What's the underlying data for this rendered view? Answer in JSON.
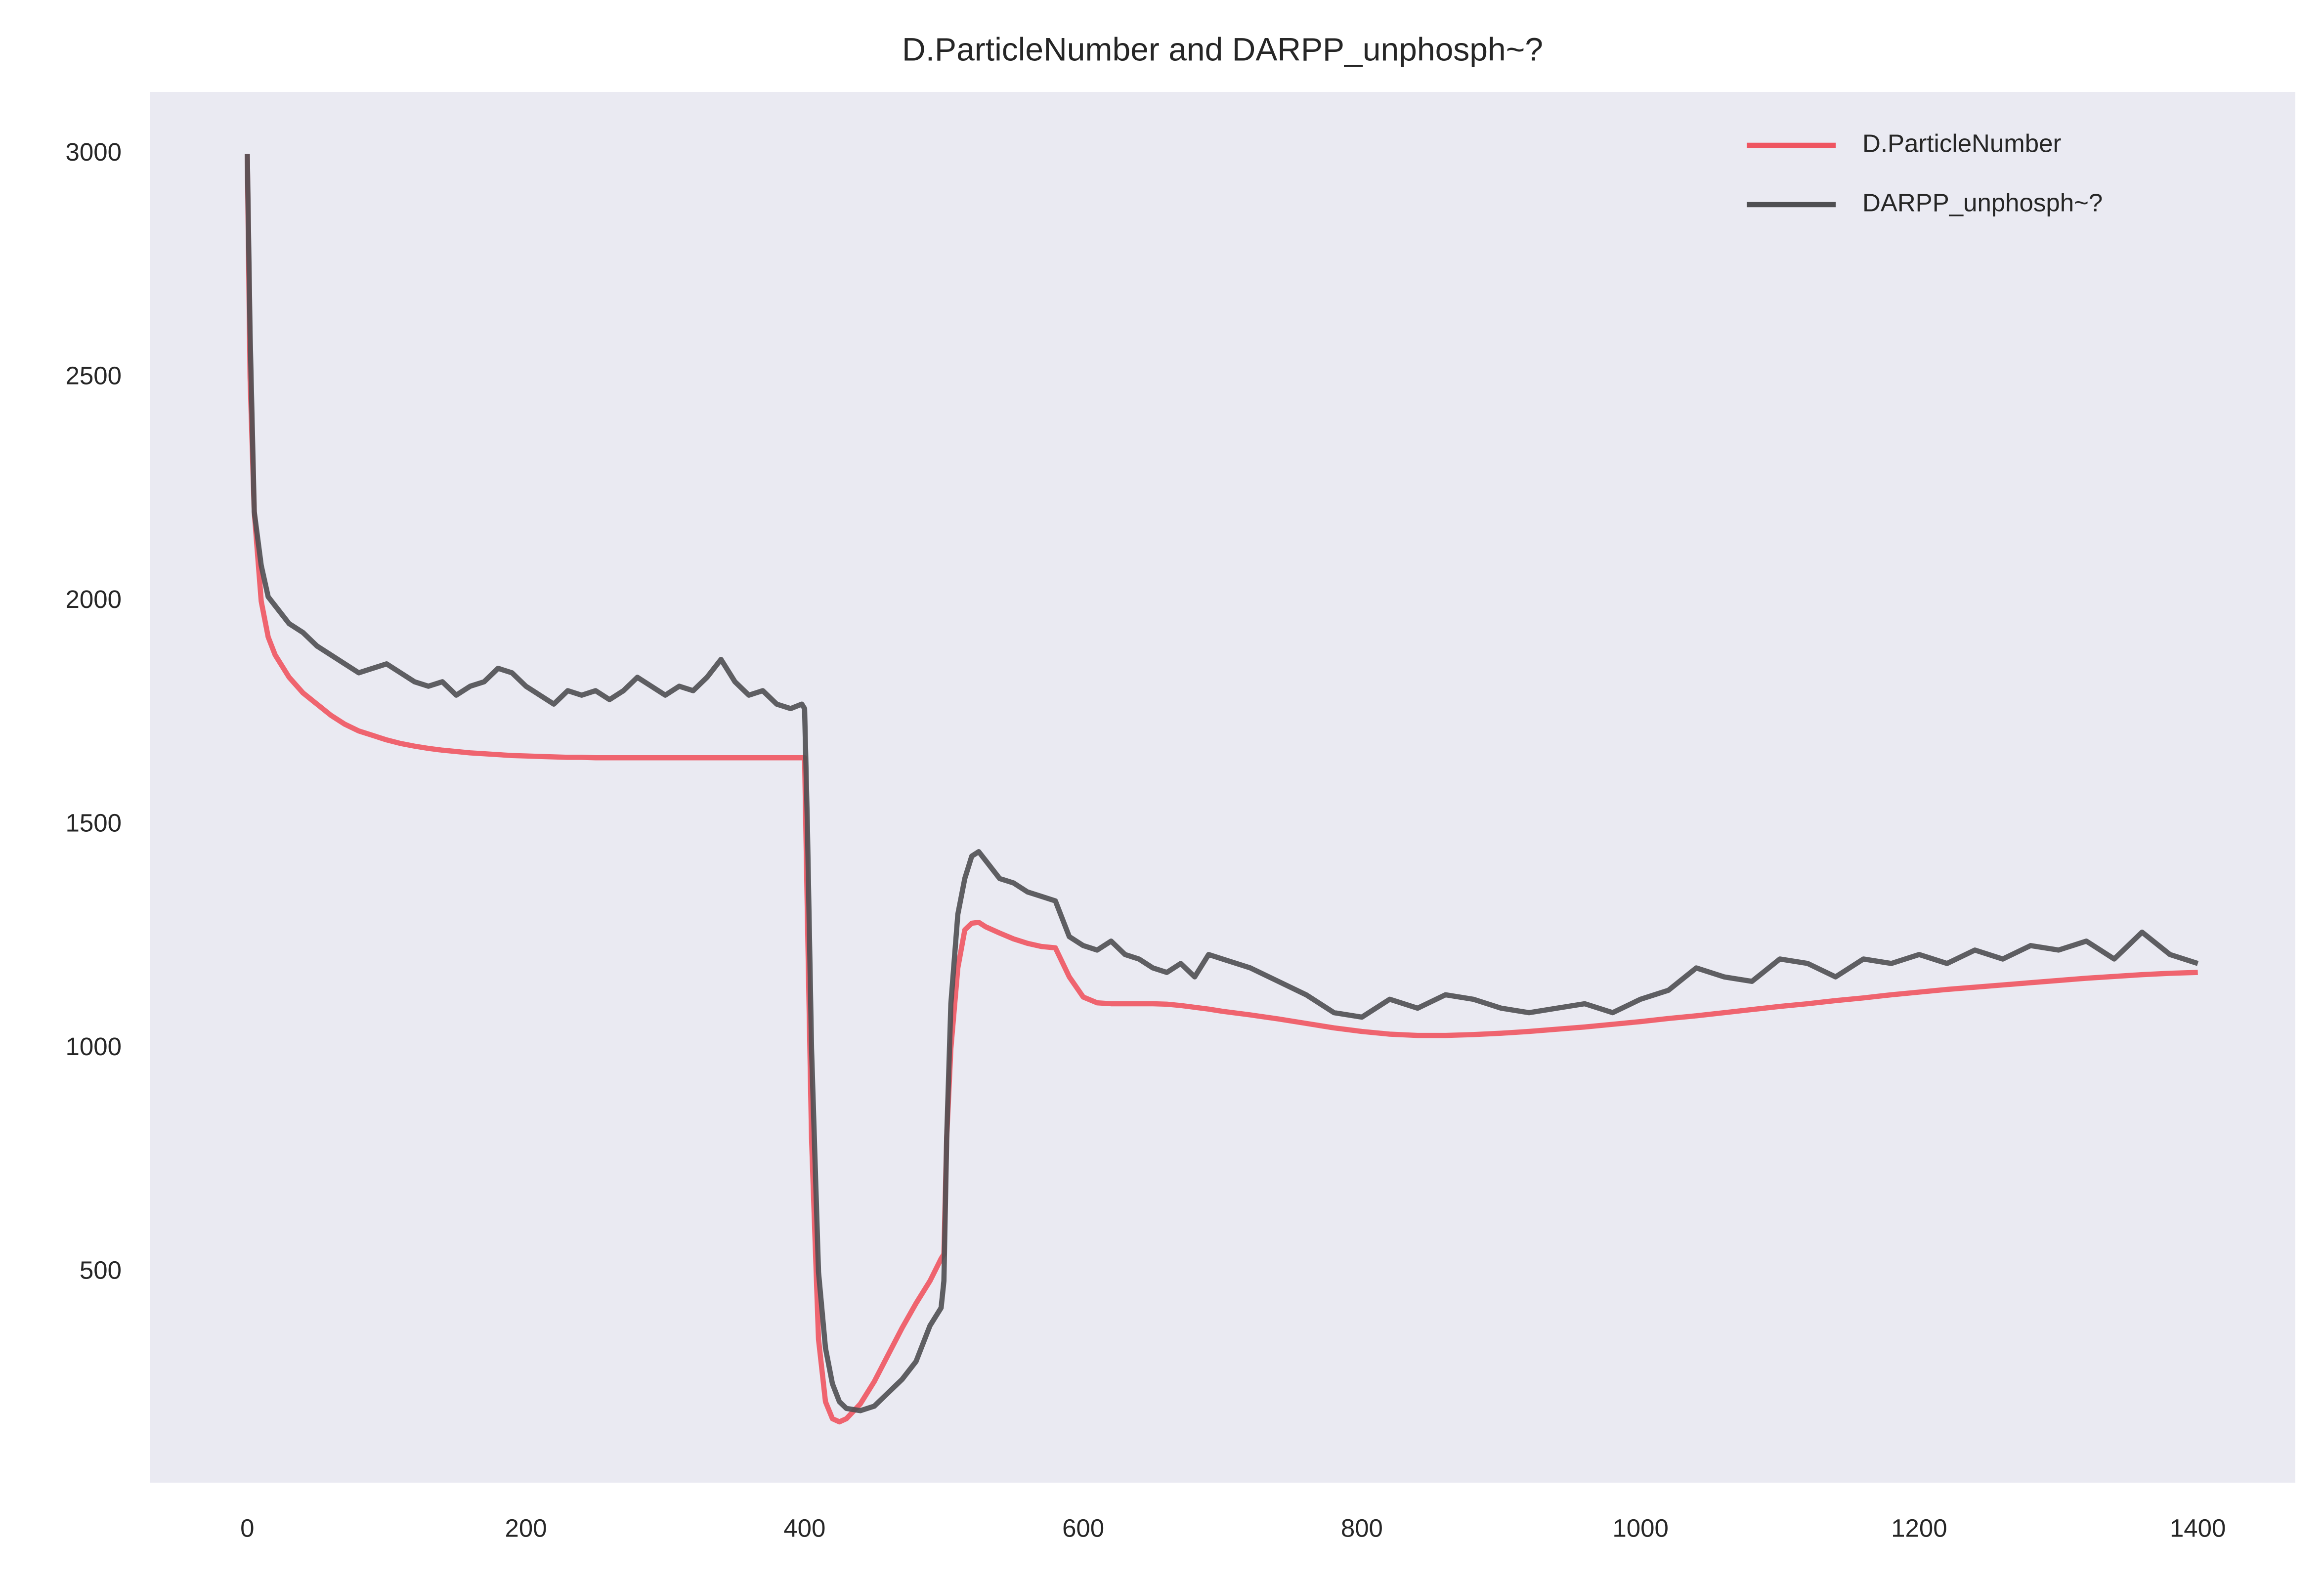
{
  "chart_data": {
    "type": "line",
    "title": "D.ParticleNumber and DARPP_unphosph~?",
    "x": [
      0,
      2,
      5,
      10,
      15,
      20,
      30,
      40,
      50,
      60,
      70,
      80,
      90,
      100,
      110,
      120,
      130,
      140,
      150,
      160,
      170,
      180,
      190,
      200,
      210,
      220,
      230,
      240,
      250,
      260,
      270,
      280,
      290,
      300,
      310,
      320,
      330,
      340,
      350,
      360,
      370,
      380,
      390,
      398,
      400,
      402,
      405,
      410,
      415,
      420,
      425,
      430,
      440,
      450,
      460,
      470,
      480,
      490,
      498,
      500,
      502,
      505,
      510,
      515,
      520,
      525,
      530,
      540,
      550,
      560,
      570,
      580,
      590,
      600,
      610,
      620,
      630,
      640,
      650,
      660,
      670,
      680,
      690,
      700,
      720,
      740,
      760,
      780,
      800,
      820,
      840,
      860,
      880,
      900,
      920,
      940,
      960,
      980,
      1000,
      1020,
      1040,
      1060,
      1080,
      1100,
      1120,
      1140,
      1160,
      1180,
      1200,
      1220,
      1240,
      1260,
      1280,
      1300,
      1320,
      1340,
      1360,
      1380,
      1400
    ],
    "series": [
      {
        "name": "D.ParticleNumber",
        "color": "#ef5561",
        "values": [
          3000,
          2500,
          2200,
          2000,
          1920,
          1880,
          1830,
          1795,
          1770,
          1745,
          1725,
          1710,
          1700,
          1690,
          1682,
          1676,
          1671,
          1667,
          1664,
          1661,
          1659,
          1657,
          1655,
          1654,
          1653,
          1652,
          1651,
          1651,
          1650,
          1650,
          1650,
          1650,
          1650,
          1650,
          1650,
          1650,
          1650,
          1650,
          1650,
          1650,
          1650,
          1650,
          1650,
          1650,
          1650,
          1300,
          800,
          350,
          210,
          172,
          165,
          172,
          205,
          255,
          315,
          375,
          430,
          480,
          530,
          540,
          800,
          1000,
          1180,
          1265,
          1280,
          1282,
          1272,
          1258,
          1245,
          1235,
          1228,
          1225,
          1160,
          1115,
          1102,
          1100,
          1100,
          1100,
          1100,
          1099,
          1096,
          1092,
          1088,
          1083,
          1075,
          1066,
          1056,
          1046,
          1038,
          1032,
          1029,
          1029,
          1031,
          1034,
          1038,
          1043,
          1048,
          1054,
          1060,
          1067,
          1073,
          1080,
          1087,
          1094,
          1100,
          1107,
          1113,
          1120,
          1126,
          1132,
          1137,
          1142,
          1147,
          1152,
          1157,
          1161,
          1165,
          1168,
          1170
        ]
      },
      {
        "name": "DARPP_unphosph~?",
        "color": "#4f4f52",
        "values": [
          3000,
          2600,
          2200,
          2080,
          2010,
          1990,
          1950,
          1930,
          1900,
          1880,
          1860,
          1840,
          1850,
          1860,
          1840,
          1820,
          1810,
          1820,
          1790,
          1810,
          1820,
          1850,
          1840,
          1810,
          1790,
          1770,
          1800,
          1790,
          1800,
          1780,
          1800,
          1830,
          1810,
          1790,
          1810,
          1800,
          1830,
          1870,
          1820,
          1790,
          1800,
          1770,
          1760,
          1770,
          1760,
          1500,
          1000,
          500,
          330,
          250,
          210,
          195,
          190,
          200,
          230,
          260,
          300,
          380,
          420,
          480,
          800,
          1100,
          1300,
          1380,
          1430,
          1440,
          1420,
          1380,
          1370,
          1350,
          1340,
          1330,
          1250,
          1230,
          1220,
          1240,
          1210,
          1200,
          1180,
          1170,
          1190,
          1160,
          1210,
          1200,
          1180,
          1150,
          1120,
          1080,
          1070,
          1110,
          1090,
          1120,
          1110,
          1090,
          1080,
          1090,
          1100,
          1080,
          1110,
          1130,
          1180,
          1160,
          1150,
          1200,
          1190,
          1160,
          1200,
          1190,
          1210,
          1190,
          1220,
          1200,
          1230,
          1220,
          1240,
          1200,
          1260,
          1210,
          1190
        ]
      }
    ],
    "xlim": [
      -70,
      1470
    ],
    "ylim": [
      29,
      3139
    ],
    "xticks": [
      0,
      200,
      400,
      600,
      800,
      1000,
      1200,
      1400
    ],
    "yticks": [
      500,
      1000,
      1500,
      2000,
      2500,
      3000
    ],
    "grid": false,
    "legend": "upper right"
  }
}
